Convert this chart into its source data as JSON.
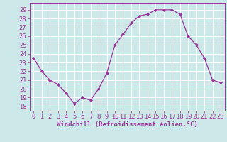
{
  "x": [
    0,
    1,
    2,
    3,
    4,
    5,
    6,
    7,
    8,
    9,
    10,
    11,
    12,
    13,
    14,
    15,
    16,
    17,
    18,
    19,
    20,
    21,
    22,
    23
  ],
  "y": [
    23.5,
    22.0,
    21.0,
    20.5,
    19.5,
    18.3,
    19.0,
    18.7,
    20.0,
    21.8,
    25.0,
    26.2,
    27.5,
    28.3,
    28.5,
    29.0,
    29.0,
    29.0,
    28.5,
    26.0,
    25.0,
    23.5,
    21.0,
    20.7
  ],
  "line_color": "#993399",
  "marker": "D",
  "marker_size": 2,
  "bg_color": "#cce8e8",
  "grid_color": "#ffffff",
  "xlabel": "Windchill (Refroidissement éolien,°C)",
  "xlabel_color": "#993399",
  "ylabel_ticks": [
    18,
    19,
    20,
    21,
    22,
    23,
    24,
    25,
    26,
    27,
    28,
    29
  ],
  "xlim": [
    -0.5,
    23.5
  ],
  "ylim": [
    17.5,
    29.8
  ],
  "tick_label_color": "#993399",
  "tick_fontsize": 6,
  "xlabel_fontsize": 6.5
}
